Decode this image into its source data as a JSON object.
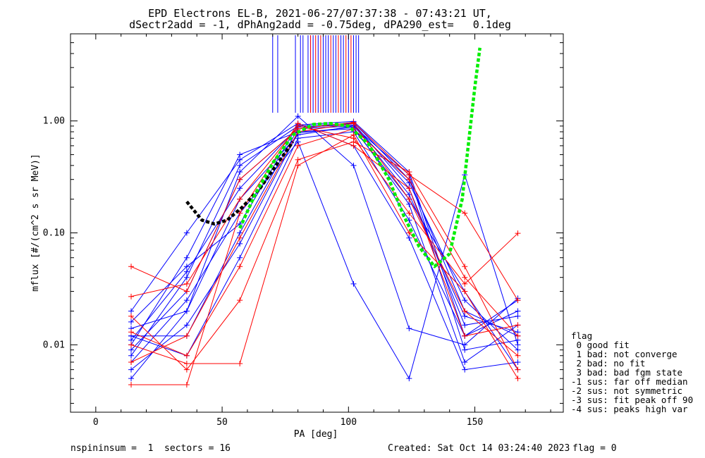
{
  "chart_data": {
    "type": "line",
    "title": "EPD Electrons EL-B, 2021-06-27/07:37:38 - 07:43:21 UT,",
    "subtitle": "dSectr2add = -1, dPhAng2add = -0.75deg, dPA290_est=   0.1deg",
    "xlabel": "PA [deg]",
    "ylabel": "mflux [#/(cm^2 s sr MeV)]",
    "xlim": [
      -10,
      185
    ],
    "ylim": [
      0.0025,
      6
    ],
    "yscale": "log",
    "x_ticks": [
      0,
      50,
      100,
      150
    ],
    "y_ticks": [
      {
        "v": 0.01,
        "label": "0.01"
      },
      {
        "v": 0.1,
        "label": "0.10"
      },
      {
        "v": 1.0,
        "label": "1.00"
      }
    ],
    "sector_x": [
      14,
      36,
      57,
      80,
      102,
      124,
      146,
      167
    ],
    "series": [
      {
        "color": "#0000ff",
        "profiles": [
          [
            0.012,
            0.012,
            0.1,
            0.85,
            0.97,
            0.3,
            0.02,
            0.012
          ],
          [
            0.008,
            0.04,
            0.4,
            0.9,
            0.95,
            0.25,
            0.015,
            0.018
          ],
          [
            0.014,
            0.02,
            0.2,
            0.75,
            0.9,
            0.33,
            0.009,
            0.011
          ],
          [
            0.01,
            0.06,
            0.5,
            0.8,
            0.85,
            0.2,
            0.03,
            0.006
          ],
          [
            0.016,
            0.05,
            0.12,
            0.92,
            0.99,
            0.35,
            0.012,
            0.025
          ],
          [
            0.006,
            0.015,
            0.08,
            0.78,
            0.88,
            0.18,
            0.007,
            0.015
          ],
          [
            0.009,
            0.03,
            0.3,
            0.85,
            0.9,
            0.28,
            0.025,
            0.009
          ],
          [
            0.012,
            0.008,
            0.06,
            0.7,
            0.8,
            0.13,
            0.012,
            0.02
          ],
          [
            0.02,
            0.1,
            0.45,
            0.95,
            0.6,
            0.09,
            0.006,
            0.007
          ],
          [
            0.007,
            0.025,
            0.15,
            0.65,
            0.035,
            0.005,
            0.33,
            0.01
          ],
          [
            0.011,
            0.045,
            0.25,
            0.88,
            0.92,
            0.22,
            0.018,
            0.013
          ],
          [
            0.005,
            0.02,
            0.35,
            1.1,
            0.4,
            0.014,
            0.01,
            0.026
          ]
        ]
      },
      {
        "color": "#ff0000",
        "profiles": [
          [
            0.013,
            0.008,
            0.05,
            0.6,
            0.85,
            0.3,
            0.04,
            0.012
          ],
          [
            0.007,
            0.012,
            0.09,
            0.8,
            0.95,
            0.2,
            0.02,
            0.008
          ],
          [
            0.027,
            0.035,
            0.2,
            0.9,
            0.7,
            0.15,
            0.035,
            0.099
          ],
          [
            0.018,
            0.006,
            0.025,
            0.45,
            0.65,
            0.35,
            0.05,
            0.006
          ],
          [
            0.05,
            0.03,
            0.3,
            0.85,
            0.97,
            0.33,
            0.15,
            0.025
          ],
          [
            0.01,
            0.0068,
            0.0068,
            0.4,
            0.75,
            0.1,
            0.03,
            0.005
          ],
          [
            0.0044,
            0.0044,
            0.15,
            0.95,
            0.6,
            0.25,
            0.012,
            0.015
          ]
        ]
      }
    ],
    "fit_curves": [
      {
        "color": "#000000",
        "points": [
          [
            36,
            0.19
          ],
          [
            42,
            0.13
          ],
          [
            47,
            0.12
          ],
          [
            52,
            0.13
          ],
          [
            58,
            0.17
          ],
          [
            65,
            0.25
          ],
          [
            72,
            0.42
          ],
          [
            78,
            0.65
          ]
        ]
      },
      {
        "color": "#00ee00",
        "points": [
          [
            57,
            0.11
          ],
          [
            63,
            0.22
          ],
          [
            70,
            0.42
          ],
          [
            78,
            0.75
          ],
          [
            86,
            0.93
          ],
          [
            93,
            0.95
          ],
          [
            100,
            0.9
          ],
          [
            108,
            0.62
          ],
          [
            116,
            0.3
          ],
          [
            122,
            0.14
          ],
          [
            128,
            0.075
          ],
          [
            134,
            0.05
          ],
          [
            140,
            0.065
          ],
          [
            145,
            0.2
          ],
          [
            148,
            0.8
          ],
          [
            150,
            2.0
          ],
          [
            152,
            4.5
          ]
        ]
      }
    ],
    "ticks_top": {
      "blue": [
        70,
        72,
        79,
        81,
        82,
        84,
        85,
        86,
        88,
        90,
        91,
        92,
        94,
        95,
        97,
        98,
        100,
        102,
        103,
        104
      ],
      "red": [
        85,
        87,
        89,
        93,
        96,
        99,
        101
      ]
    },
    "legend": {
      "placement": "right",
      "title": "flag",
      "items": [
        " 0 good fit",
        " 1 bad: not converge",
        " 2 bad: no fit",
        " 3 bad: bad fgm state",
        "-1 sus: far off median",
        "-2 sus: not symmetric",
        "-3 sus: fit peak off 90",
        "-4 sus: peaks high var"
      ]
    }
  },
  "footer": {
    "left": "nspininsum =  1  sectors = 16",
    "created": "Created: Sat Oct 14 03:24:40 2023",
    "flag": "flag = 0"
  }
}
